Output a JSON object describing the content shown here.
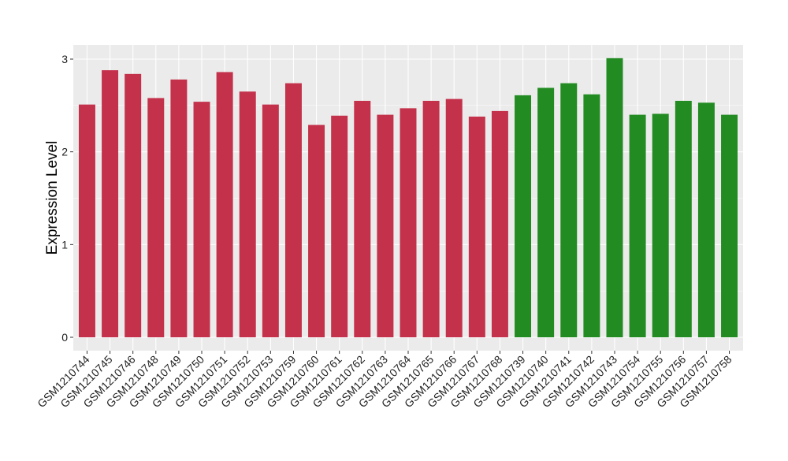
{
  "chart_data": {
    "type": "bar",
    "title": "",
    "xlabel": "",
    "ylabel": "Expression Level",
    "ylim": [
      0,
      3.1
    ],
    "yticks": [
      0,
      1,
      2,
      3
    ],
    "grid": true,
    "legend": "none",
    "categories": [
      "GSM1210744",
      "GSM1210745",
      "GSM1210746",
      "GSM1210748",
      "GSM1210749",
      "GSM1210750",
      "GSM1210751",
      "GSM1210752",
      "GSM1210753",
      "GSM1210759",
      "GSM1210760",
      "GSM1210761",
      "GSM1210762",
      "GSM1210763",
      "GSM1210764",
      "GSM1210765",
      "GSM1210766",
      "GSM1210767",
      "GSM1210768",
      "GSM1210739",
      "GSM1210740",
      "GSM1210741",
      "GSM1210742",
      "GSM1210743",
      "GSM1210754",
      "GSM1210755",
      "GSM1210756",
      "GSM1210757",
      "GSM1210758"
    ],
    "values": [
      2.51,
      2.88,
      2.84,
      2.58,
      2.78,
      2.54,
      2.86,
      2.65,
      2.51,
      2.74,
      2.29,
      2.39,
      2.55,
      2.4,
      2.47,
      2.55,
      2.57,
      2.38,
      2.44,
      2.61,
      2.69,
      2.74,
      2.62,
      3.01,
      2.4,
      2.41,
      2.55,
      2.53,
      2.4
    ],
    "groups": [
      "red",
      "red",
      "red",
      "red",
      "red",
      "red",
      "red",
      "red",
      "red",
      "red",
      "red",
      "red",
      "red",
      "red",
      "red",
      "red",
      "red",
      "red",
      "red",
      "green",
      "green",
      "green",
      "green",
      "green",
      "green",
      "green",
      "green",
      "green",
      "green"
    ],
    "colors": {
      "red": "#C4314B",
      "green": "#228B22",
      "panel": "#EBEBEB",
      "grid": "#FFFFFF"
    }
  }
}
